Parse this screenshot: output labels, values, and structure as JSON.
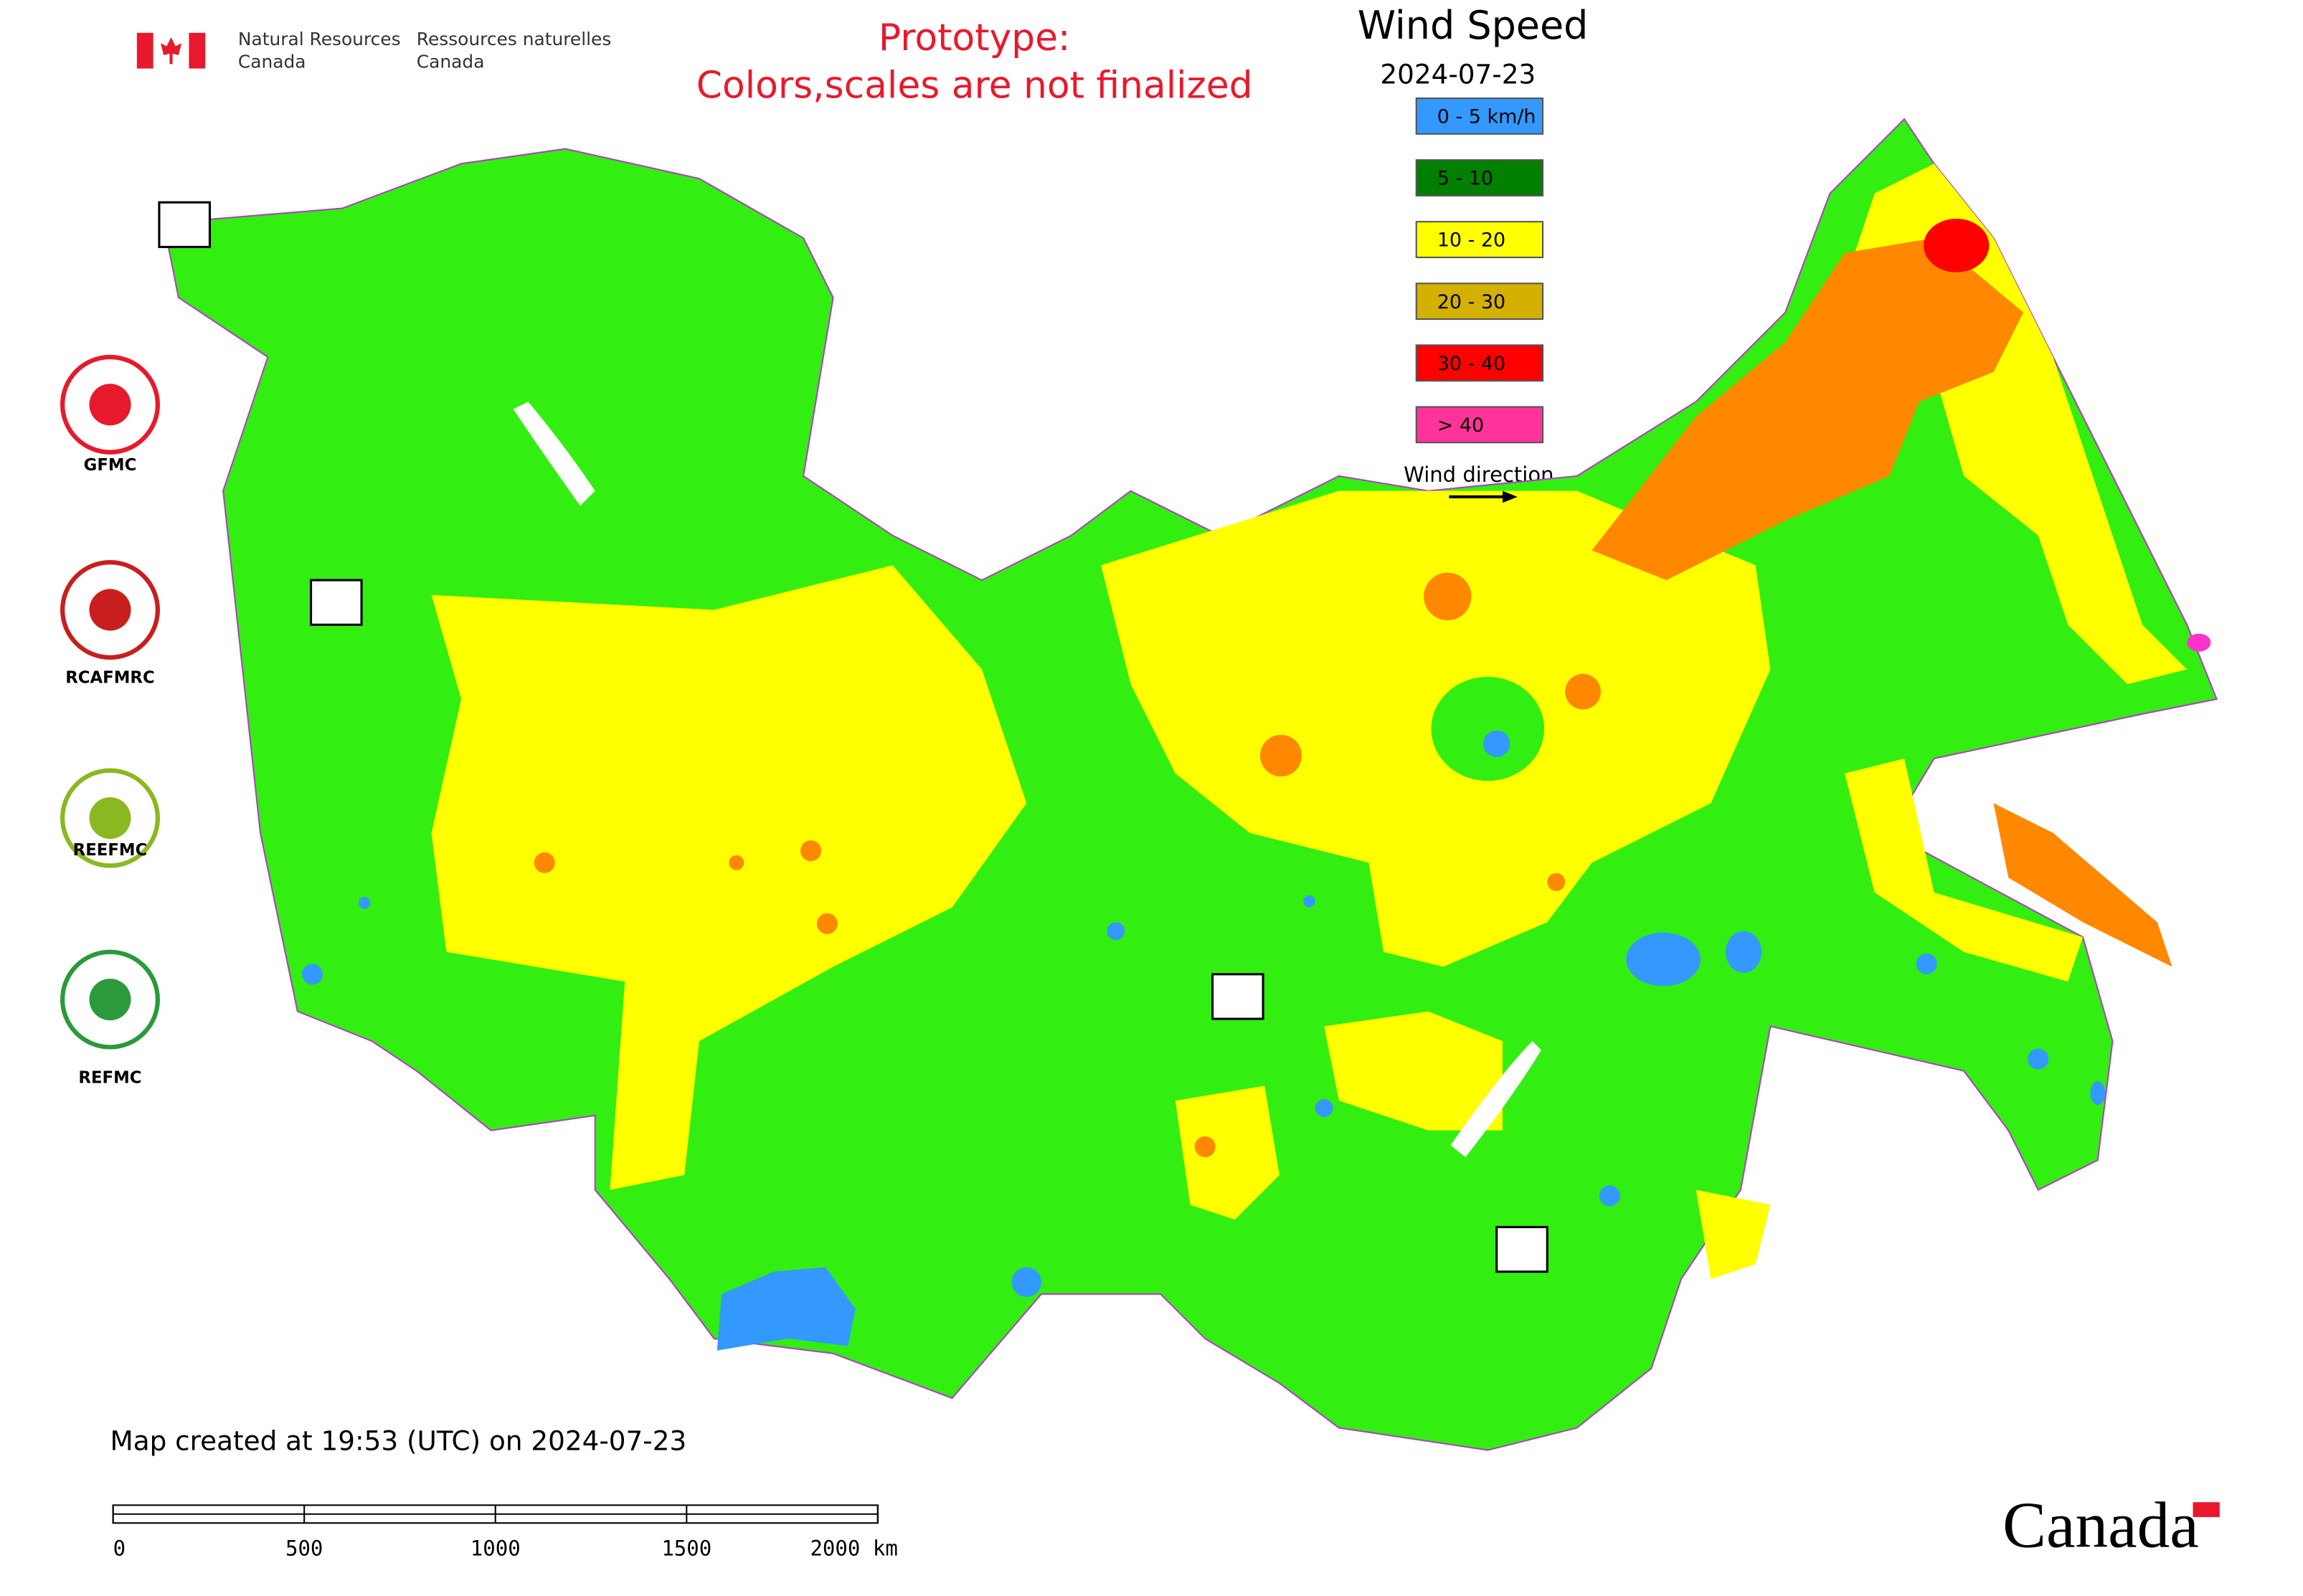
{
  "header": {
    "agency_en_1": "Natural Resources",
    "agency_en_2": "Canada",
    "agency_fr_1": "Ressources naturelles",
    "agency_fr_2": "Canada",
    "notice_1": "Prototype:",
    "notice_2": "Colors,scales are not finalized"
  },
  "legend": {
    "title": "Wind Speed",
    "date": "2024-07-23",
    "items": [
      {
        "label": "0 - 5 km/h",
        "color": "#3399ff"
      },
      {
        "label": "5 - 10",
        "color": "#008000"
      },
      {
        "label": "10 - 20",
        "color": "#ffff00"
      },
      {
        "label": "20 - 30",
        "color": "#d4b000"
      },
      {
        "label": "30 - 40",
        "color": "#ff0000"
      },
      {
        "label": "> 40",
        "color": "#ff3399"
      }
    ],
    "wind_direction": "Wind direction"
  },
  "logos": [
    "GFMC",
    "RCAFMRC",
    "REEFMC",
    "REFMC"
  ],
  "footer": {
    "created": "Map created at 19:53 (UTC) on 2024-07-23",
    "scale_labels": [
      "0",
      "500",
      "1000",
      "1500",
      "2000 km"
    ],
    "wordmark": "Canada"
  }
}
